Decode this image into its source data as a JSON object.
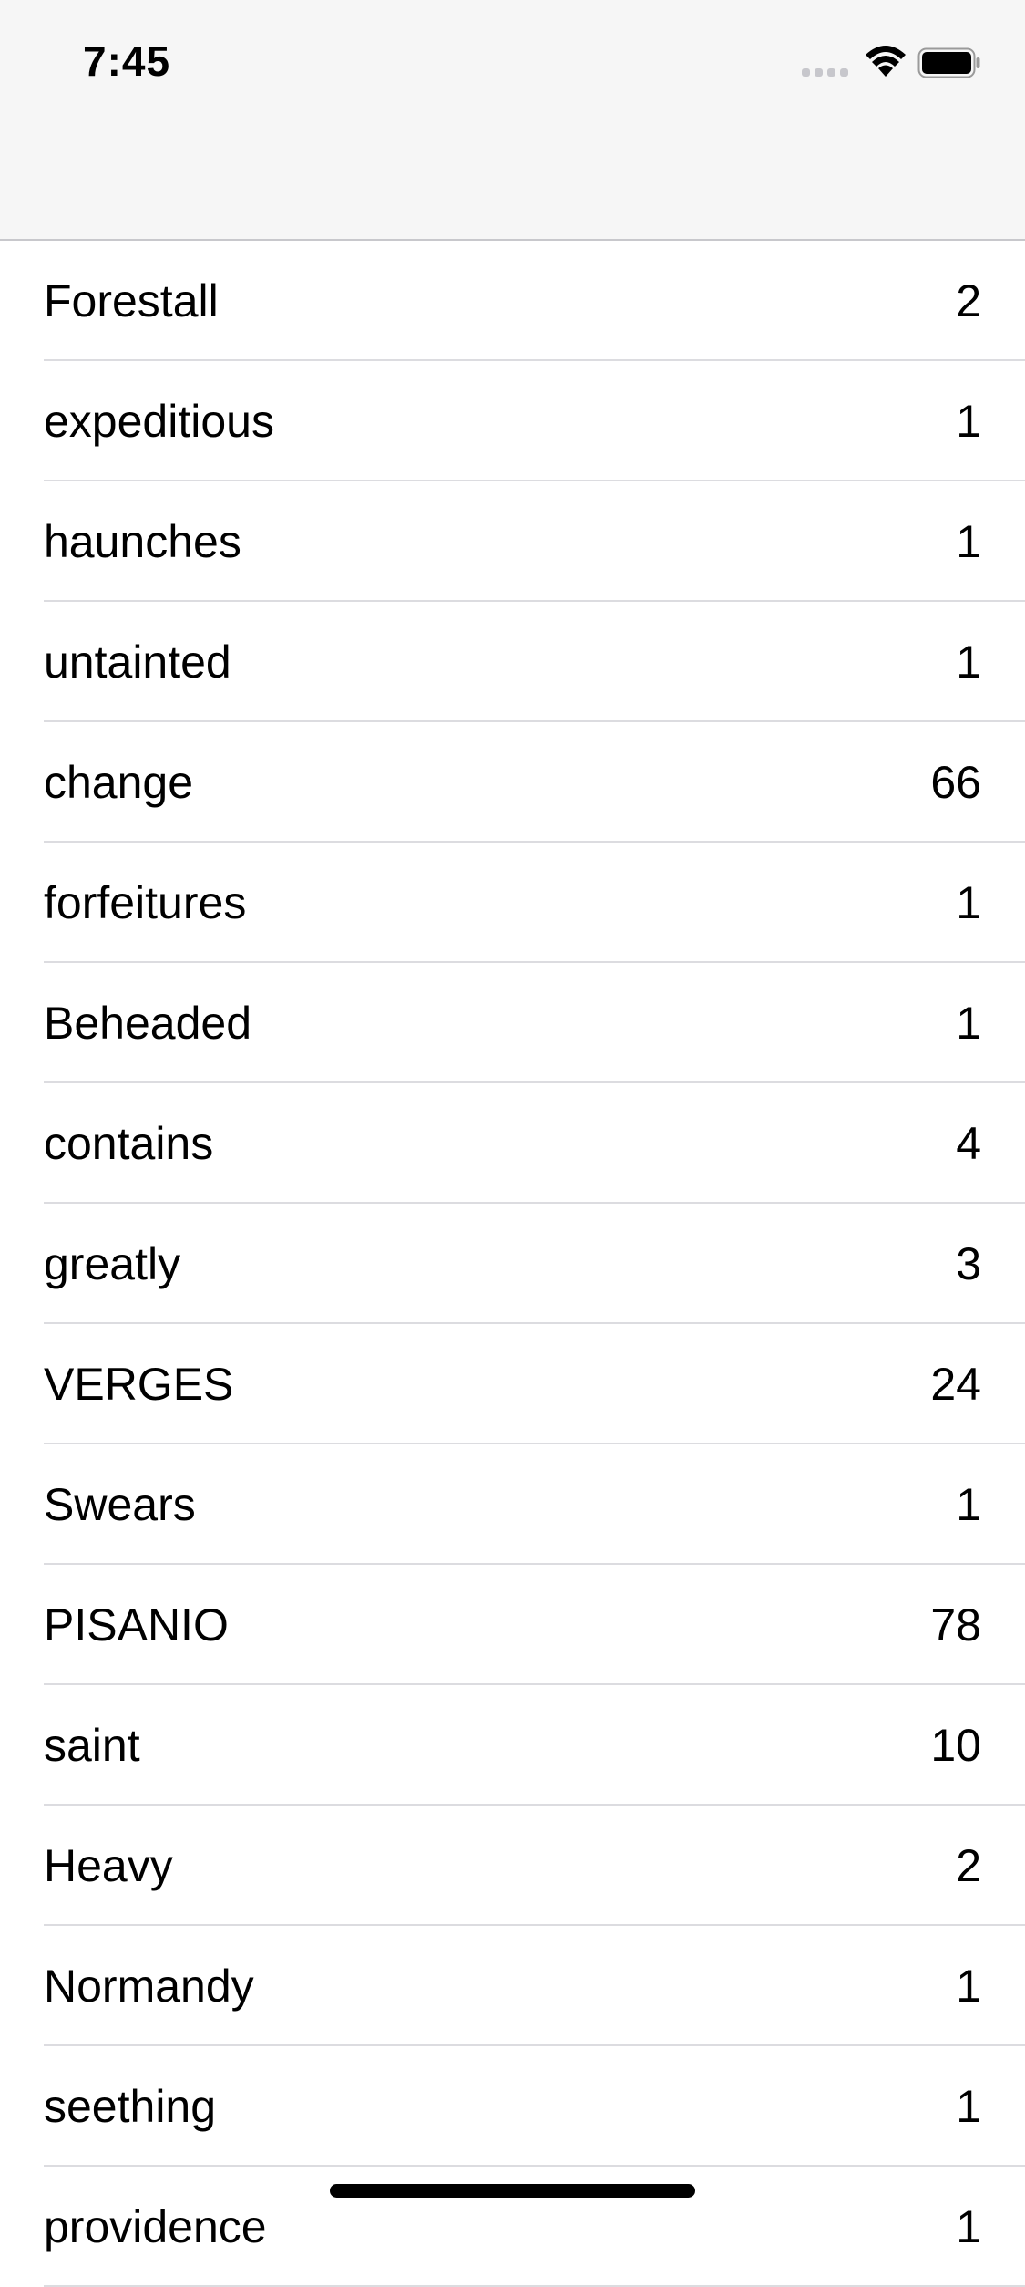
{
  "status_bar": {
    "time": "7:45",
    "signal_icon": "cellular-signal-icon",
    "wifi_icon": "wifi-icon",
    "battery_icon": "battery-icon"
  },
  "list": {
    "rows": [
      {
        "word": "Forestall",
        "count": "2"
      },
      {
        "word": "expeditious",
        "count": "1"
      },
      {
        "word": "haunches",
        "count": "1"
      },
      {
        "word": "untainted",
        "count": "1"
      },
      {
        "word": "change",
        "count": "66"
      },
      {
        "word": "forfeitures",
        "count": "1"
      },
      {
        "word": "Beheaded",
        "count": "1"
      },
      {
        "word": "contains",
        "count": "4"
      },
      {
        "word": "greatly",
        "count": "3"
      },
      {
        "word": "VERGES",
        "count": "24"
      },
      {
        "word": "Swears",
        "count": "1"
      },
      {
        "word": "PISANIO",
        "count": "78"
      },
      {
        "word": "saint",
        "count": "10"
      },
      {
        "word": "Heavy",
        "count": "2"
      },
      {
        "word": "Normandy",
        "count": "1"
      },
      {
        "word": "seething",
        "count": "1"
      },
      {
        "word": "providence",
        "count": "1"
      }
    ]
  }
}
